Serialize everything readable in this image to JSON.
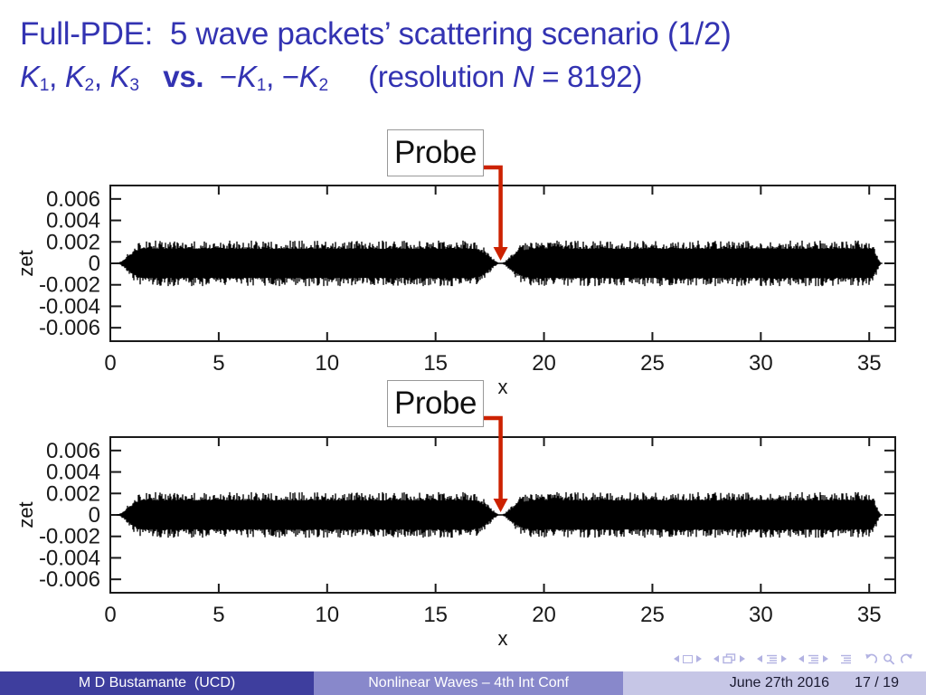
{
  "slide": {
    "title_line1": "Full-PDE:  5 wave packets’ scattering scenario (1/2)",
    "title_line2_runs": [
      {
        "t": "K",
        "style": "it"
      },
      {
        "t": "1",
        "style": "sub"
      },
      {
        "t": ", ",
        "style": "plain"
      },
      {
        "t": "K",
        "style": "it"
      },
      {
        "t": "2",
        "style": "sub"
      },
      {
        "t": ", ",
        "style": "plain"
      },
      {
        "t": "K",
        "style": "it"
      },
      {
        "t": "3",
        "style": "sub"
      },
      {
        "t": "   ",
        "style": "gap"
      },
      {
        "t": "vs.",
        "style": "bold"
      },
      {
        "t": "  ",
        "style": "gap"
      },
      {
        "t": "−",
        "style": "plain"
      },
      {
        "t": "K",
        "style": "it"
      },
      {
        "t": "1",
        "style": "sub"
      },
      {
        "t": ", −",
        "style": "plain"
      },
      {
        "t": "K",
        "style": "it"
      },
      {
        "t": "2",
        "style": "sub"
      },
      {
        "t": "     ",
        "style": "gap"
      },
      {
        "t": "(resolution ",
        "style": "plain"
      },
      {
        "t": "N",
        "style": "it"
      },
      {
        "t": " = 8192)",
        "style": "plain"
      }
    ]
  },
  "colors": {
    "title_blue": "#3333b2",
    "arrow_red": "#cc2200",
    "axis_black": "#1a1a1a",
    "wave_black": "#000000",
    "probe_border": "#999999",
    "probe_text": "#111111",
    "footer_left_bg": "#3e3e9e",
    "footer_mid_bg": "#8888cb",
    "footer_right_bg": "#c6c6e6",
    "footer_light_text": "#ffffff",
    "footer_dark_text": "#1a1a30",
    "nav_icon": "#b2b2e2"
  },
  "chart_data": [
    {
      "type": "line",
      "title": "",
      "xlabel": "x",
      "ylabel": "zet",
      "xlim": [
        0,
        36.2
      ],
      "ylim": [
        -0.00725,
        0.00725
      ],
      "grid": false,
      "xticks": [
        0,
        5,
        10,
        15,
        20,
        25,
        30,
        35
      ],
      "xticklabels": [
        "0",
        "5",
        "10",
        "15",
        "20",
        "25",
        "30",
        "35"
      ],
      "yticks": [
        0.006,
        0.004,
        0.002,
        0,
        -0.002,
        -0.004,
        -0.006
      ],
      "yticklabels": [
        "0.006",
        "0.004",
        "0.002",
        "0",
        "-0.002",
        "-0.004",
        "-0.006"
      ],
      "probe": {
        "label": "Probe",
        "x": 18
      },
      "series": [
        {
          "name": "zet",
          "kind": "dense wave-packet train (black filled oscillation band)",
          "amplitude": 0.00165,
          "spike_amplitude": 0.002,
          "support": [
            0.25,
            35.6
          ],
          "rise_end": 1.5,
          "fall_start": 35.05,
          "notch_center": 18,
          "notch_sigma": 0.5,
          "notch_depth": 0.985
        }
      ]
    },
    {
      "type": "line",
      "title": "",
      "xlabel": "x",
      "ylabel": "zet",
      "xlim": [
        0,
        36.2
      ],
      "ylim": [
        -0.00725,
        0.00725
      ],
      "grid": false,
      "xticks": [
        0,
        5,
        10,
        15,
        20,
        25,
        30,
        35
      ],
      "xticklabels": [
        "0",
        "5",
        "10",
        "15",
        "20",
        "25",
        "30",
        "35"
      ],
      "yticks": [
        0.006,
        0.004,
        0.002,
        0,
        -0.002,
        -0.004,
        -0.006
      ],
      "yticklabels": [
        "0.006",
        "0.004",
        "0.002",
        "0",
        "-0.002",
        "-0.004",
        "-0.006"
      ],
      "probe": {
        "label": "Probe",
        "x": 18
      },
      "series": [
        {
          "name": "zet",
          "kind": "dense wave-packet train (black filled oscillation band)",
          "amplitude": 0.00165,
          "spike_amplitude": 0.002,
          "support": [
            0.25,
            35.6
          ],
          "rise_end": 1.5,
          "fall_start": 35.05,
          "notch_center": 18,
          "notch_sigma": 0.5,
          "notch_depth": 0.985
        }
      ]
    }
  ],
  "nav": {
    "icons": [
      "prev-slide",
      "slide",
      "next-slide",
      "prev-frame",
      "frame",
      "next-frame",
      "prev-subsection",
      "subsection",
      "next-subsection",
      "prev-section",
      "section",
      "next-section",
      "appendix",
      "history-back",
      "search",
      "history-forward"
    ]
  },
  "footer": {
    "author": "M D Bustamante  (UCD)",
    "event": "Nonlinear Waves – 4th Int Conf",
    "date": "June 27th 2016",
    "page": "17 / 19"
  }
}
